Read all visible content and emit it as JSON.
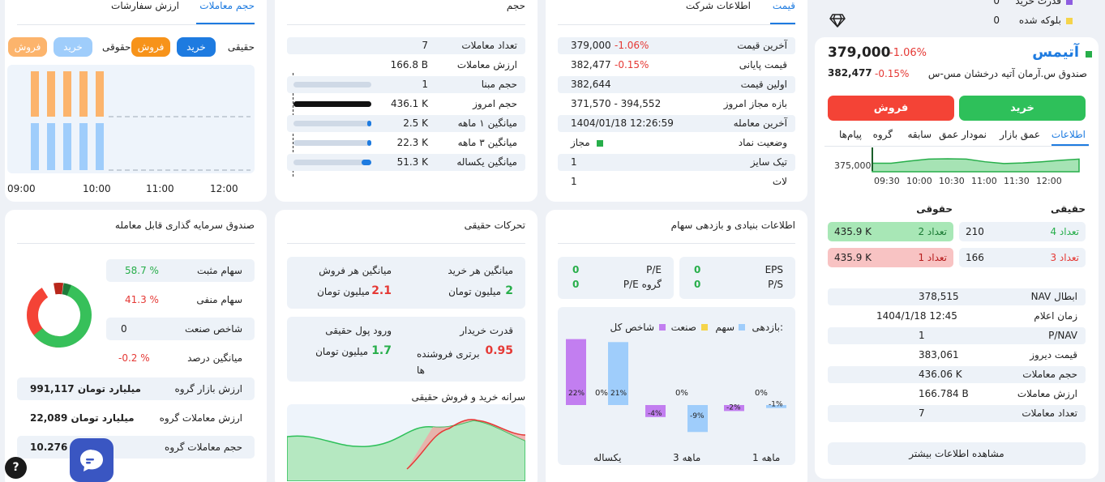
{
  "colors": {
    "green": "#27ae4a",
    "red": "#e53935",
    "blue": "#1e7be0",
    "buy": "#2ec05a",
    "sell": "#f44336",
    "buy_light": "#9fcdfb",
    "sell_light": "#fcb46c",
    "purple": "#c27ef0",
    "yellow": "#f5d44a"
  },
  "top_status": {
    "buy_power_label": "قدرت خرید",
    "buy_power_value": "0",
    "blocked_label": "بلوکه شده",
    "blocked_value": "0"
  },
  "symbol": {
    "name": "آتیمس",
    "price": "379,000",
    "change": "-1.06%",
    "fullname": "صندوق س.آرمان آتیه درخشان مس-س",
    "close": "382,477",
    "close_change": "-0.15%",
    "buy_label": "خرید",
    "sell_label": "فروش"
  },
  "side_tabs": [
    "اطلاعات",
    "عمق بازار",
    "نمودار عمق",
    "سابقه",
    "گروه",
    "پیام‌ها"
  ],
  "mini_chart": {
    "y_tick": "375,000",
    "x_ticks": [
      "09:30",
      "10:00",
      "10:30",
      "11:00",
      "11:30",
      "12:00"
    ],
    "series": [
      100,
      100,
      115,
      128,
      130,
      128,
      110,
      98,
      102,
      110,
      120,
      128
    ]
  },
  "order_book": {
    "real_label": "حقیقی",
    "legal_label": "حقوقی",
    "buy": {
      "count_label": "تعداد 4",
      "count": "210",
      "legal_count_label": "تعداد 2",
      "legal_volume": "435.9 K"
    },
    "sell": {
      "count_label": "تعداد 3",
      "count": "166",
      "legal_count_label": "تعداد 1",
      "legal_volume": "435.9 K"
    }
  },
  "nav_table": [
    {
      "label": "NAV ابطال",
      "value": "378,515"
    },
    {
      "label": "زمان اعلام",
      "value": "1404/1/18 12:45"
    },
    {
      "label": "P/NAV",
      "value": "1"
    },
    {
      "label": "قیمت دیروز",
      "value": "383,061"
    },
    {
      "label": "حجم معاملات",
      "value": "436.06 K"
    },
    {
      "label": "ارزش معاملات",
      "value": "166.784 B"
    },
    {
      "label": "تعداد معاملات",
      "value": "7"
    }
  ],
  "more_info": "مشاهده اطلاعات بیشتر",
  "price_card": {
    "tab_active": "قیمت",
    "tab_other": "اطلاعات شرکت",
    "rows": [
      {
        "label": "آخرین قیمت",
        "value": "379,000",
        "change": "-1.06%"
      },
      {
        "label": "قیمت پایانی",
        "value": "382,477",
        "change": "-0.15%"
      },
      {
        "label": "اولین قیمت",
        "value": "382,644",
        "change": ""
      },
      {
        "label": "بازه مجاز امروز",
        "value": "371,570 - 394,552",
        "change": ""
      },
      {
        "label": "آخرین معامله",
        "value": "1404/01/18 12:26:59",
        "change": ""
      },
      {
        "label": "وضعیت نماد",
        "value": "مجاز",
        "change": ""
      },
      {
        "label": "تیک سایز",
        "value": "1",
        "change": ""
      },
      {
        "label": "لات",
        "value": "1",
        "change": ""
      }
    ]
  },
  "volume_card": {
    "title": "حجم",
    "rows": [
      {
        "label": "تعداد معاملات",
        "value": "7",
        "bar": null
      },
      {
        "label": "ارزش معاملات",
        "value": "166.8 B",
        "bar": null
      },
      {
        "label": "حجم مبنا",
        "value": "1",
        "bar": 0
      },
      {
        "label": "حجم امروز",
        "value": "436.1 K",
        "bar": 1
      },
      {
        "label": "میانگین ۱ ماهه",
        "value": "2.5 K",
        "bar": 0.006
      },
      {
        "label": "میانگین ۳ ماهه",
        "value": "22.3 K",
        "bar": 0.05
      },
      {
        "label": "میانگین یکساله",
        "value": "51.3 K",
        "bar": 0.12
      }
    ]
  },
  "trade_card": {
    "tab_active": "حجم معاملات",
    "tab_other": "ارزش سفارشات",
    "real_label": "حقیقی",
    "legal_label": "حقوقی",
    "buy": "خرید",
    "sell": "فروش",
    "x_ticks": [
      "09:00",
      "10:00",
      "11:00",
      "12:00"
    ],
    "sell_bars": [
      1,
      1,
      1,
      1,
      1
    ],
    "buy_bars": [
      1,
      1,
      1,
      1,
      1
    ]
  },
  "fund_card": {
    "title": "صندوق سرمایه گذاری قابل معامله",
    "rows": [
      {
        "label": "سهام مثبت",
        "value": "58.7 %"
      },
      {
        "label": "سهام منفی",
        "value": "41.3 %"
      },
      {
        "label": "شاخص صنعت",
        "value": "0"
      },
      {
        "label": "میانگین درصد",
        "value": "-0.2 %"
      }
    ],
    "group": [
      {
        "label": "ارزش بازار گروه",
        "value": "991,117 میلیارد تومان"
      },
      {
        "label": "ارزش معاملات گروه",
        "value": "22,089 میلیارد تومان"
      },
      {
        "label": "حجم معاملات گروه",
        "value": "10.276 B"
      }
    ],
    "donut": {
      "positive": 58.7,
      "negative": 41.3
    }
  },
  "real_card": {
    "title": "تحرکات حقیقی",
    "avg_buy_label": "میانگین هر خرید",
    "avg_buy_value": "2",
    "avg_buy_unit": "میلیون تومان",
    "avg_sell_label": "میانگین هر فروش",
    "avg_sell_value": "2.1",
    "avg_sell_unit": "میلیون تومان",
    "power_label": "قدرت خریدار",
    "power_value": "0.95",
    "power_unit": "برتری فروشنده ها",
    "inflow_label": "ورود پول حقیقی",
    "inflow_value": "1.7",
    "inflow_unit": "میلیون تومان",
    "percap_title": "سرانه خرید و فروش حقیقی"
  },
  "fund_card2": {
    "title": "اطلاعات بنیادی و بازدهی سهام",
    "eps_label": "EPS",
    "eps": "0",
    "ps_label": "P/S",
    "ps": "0",
    "pe_label": "P/E",
    "pe": "0",
    "pe_group_label": "P/E گروه",
    "pe_group": "0",
    "returns_label": "بازدهی:",
    "legend": [
      "سهم",
      "صنعت",
      "شاخص کل"
    ],
    "chart_data": {
      "type": "bar",
      "categories": [
        "1 ماهه",
        "3 ماهه",
        "یکساله"
      ],
      "series": [
        {
          "name": "سهم",
          "values": [
            -1,
            -9,
            21
          ]
        },
        {
          "name": "صنعت",
          "values": [
            0,
            0,
            0
          ]
        },
        {
          "name": "شاخص کل",
          "values": [
            -2,
            -4,
            22
          ]
        }
      ]
    }
  }
}
